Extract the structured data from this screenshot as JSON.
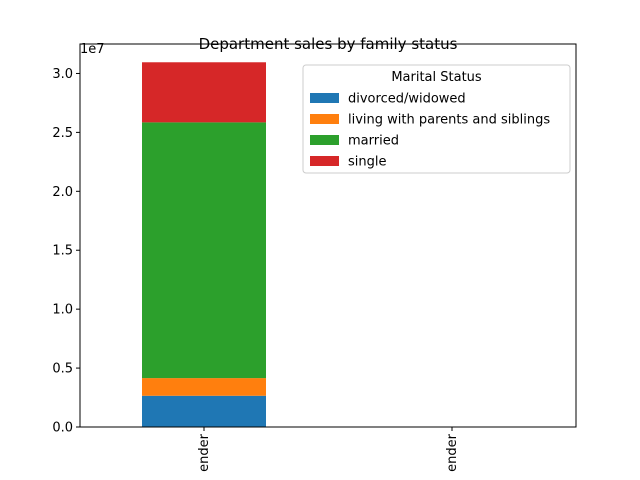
{
  "chart_data": {
    "type": "bar",
    "stacked": true,
    "title": "Department sales by family status",
    "xlabel": "",
    "ylabel": "",
    "y_offset_label": "1e7",
    "categories": [
      "Gender",
      "Gender"
    ],
    "x_tick_labels_visible": [
      "ender",
      "ender"
    ],
    "ylim": [
      0,
      32500000
    ],
    "yticks": [
      0,
      5000000,
      10000000,
      15000000,
      20000000,
      25000000,
      30000000
    ],
    "ytick_labels": [
      "0.0",
      "0.5",
      "1.0",
      "1.5",
      "2.0",
      "2.5",
      "3.0"
    ],
    "grid": false,
    "legend": {
      "title": "Marital Status",
      "placement": "upper-right"
    },
    "series": [
      {
        "name": "divorced/widowed",
        "color": "#1f77b4",
        "values": [
          2650000,
          0
        ]
      },
      {
        "name": "living with parents and siblings",
        "color": "#ff7f0e",
        "values": [
          1500000,
          0
        ]
      },
      {
        "name": "married",
        "color": "#2ca02c",
        "values": [
          21700000,
          0
        ]
      },
      {
        "name": "single",
        "color": "#d62728",
        "values": [
          5100000,
          0
        ]
      }
    ]
  }
}
